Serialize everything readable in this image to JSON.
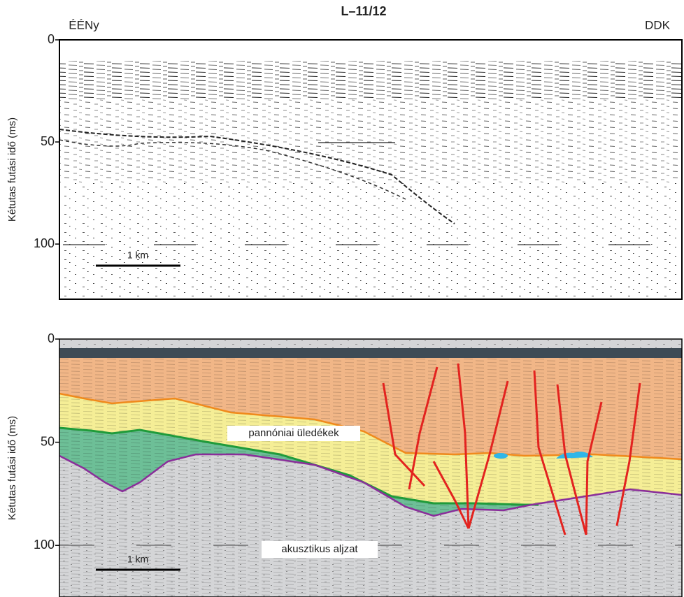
{
  "title": "L–11/12",
  "left_label": "ÉÉNy",
  "right_label": "DDK",
  "panels": [
    {
      "y_label": "Kétutas futási idő (ms)",
      "ylim": [
        0,
        127
      ],
      "yticks": [
        0,
        50,
        100
      ],
      "scale_label": "1 km"
    },
    {
      "y_label": "Kétutas futási idő (ms)",
      "ylim": [
        0,
        125
      ],
      "yticks": [
        0,
        50,
        100
      ],
      "scale_label": "1 km",
      "annotations": [
        "pannóniai üledékek",
        "akusztikus aljzat"
      ]
    }
  ]
}
